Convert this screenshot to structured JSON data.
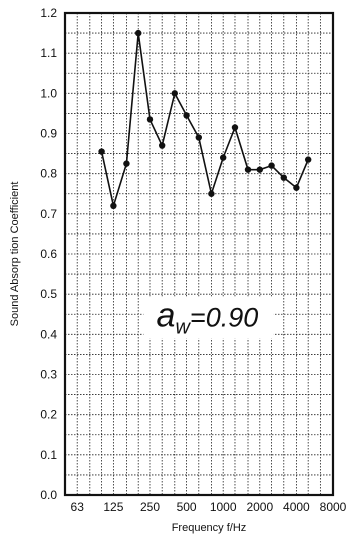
{
  "chart_data": {
    "type": "line",
    "xlabel": "Frequency f/Hz",
    "ylabel": "Sound Absorp tion Coefficient",
    "x_scale": "log",
    "xlim": [
      50,
      8000
    ],
    "ylim": [
      0.0,
      1.2
    ],
    "x_tick_labels": [
      "63",
      "125",
      "250",
      "500",
      "1000",
      "2000",
      "4000",
      "8000"
    ],
    "y_tick_labels": [
      "0.0",
      "0.1",
      "0.2",
      "0.3",
      "0.4",
      "0.5",
      "0.6",
      "0.7",
      "0.8",
      "0.9",
      "1.0",
      "1.1",
      "1.2"
    ],
    "grid": true,
    "series": [
      {
        "x": [
          100,
          125,
          160,
          200,
          250,
          315,
          400,
          500,
          630,
          800,
          1000,
          1250,
          1600,
          2000,
          2500,
          3150,
          4000,
          5000
        ],
        "y": [
          0.855,
          0.72,
          0.825,
          1.15,
          0.935,
          0.87,
          1.0,
          0.945,
          0.89,
          0.75,
          0.84,
          0.915,
          0.81,
          0.81,
          0.82,
          0.79,
          0.765,
          0.835
        ]
      }
    ],
    "annotation": {
      "symbol": "a",
      "subscript": "w",
      "text": "=0.90"
    }
  }
}
